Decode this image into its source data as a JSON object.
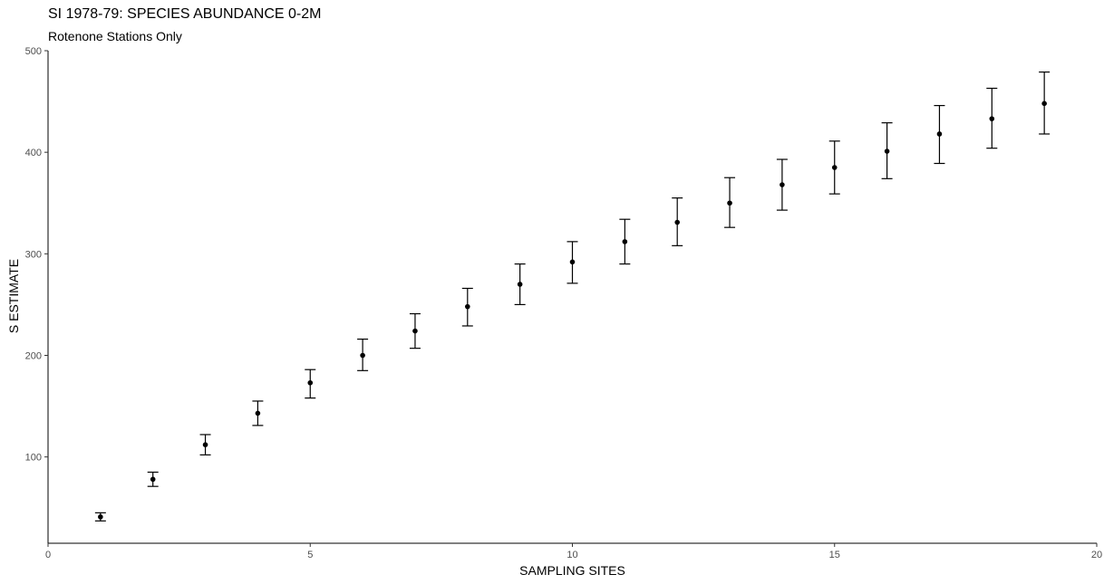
{
  "chart_data": {
    "type": "scatter",
    "title": "SI 1978-79: SPECIES ABUNDANCE 0-2M",
    "subtitle": "Rotenone Stations Only",
    "xlabel": "SAMPLING SITES",
    "ylabel": "S ESTIMATE",
    "xlim": [
      0,
      20
    ],
    "ylim": [
      15,
      500
    ],
    "x_ticks": [
      0,
      5,
      10,
      15,
      20
    ],
    "y_ticks": [
      100,
      200,
      300,
      400,
      500
    ],
    "grid": false,
    "legend": "none",
    "point_color": "#000000",
    "series": [
      {
        "x": [
          1,
          2,
          3,
          4,
          5,
          6,
          7,
          8,
          9,
          10,
          11,
          12,
          13,
          14,
          15,
          16,
          17,
          18,
          19
        ],
        "y": [
          41,
          78,
          112,
          143,
          173,
          200,
          224,
          248,
          270,
          292,
          312,
          331,
          350,
          368,
          385,
          401,
          418,
          433,
          448
        ],
        "y_lower": [
          37,
          71,
          102,
          131,
          158,
          185,
          207,
          229,
          250,
          271,
          290,
          308,
          326,
          343,
          359,
          374,
          389,
          404,
          418
        ],
        "y_upper": [
          45,
          85,
          122,
          155,
          186,
          216,
          241,
          266,
          290,
          312,
          334,
          355,
          375,
          393,
          411,
          429,
          446,
          463,
          479
        ]
      }
    ]
  }
}
